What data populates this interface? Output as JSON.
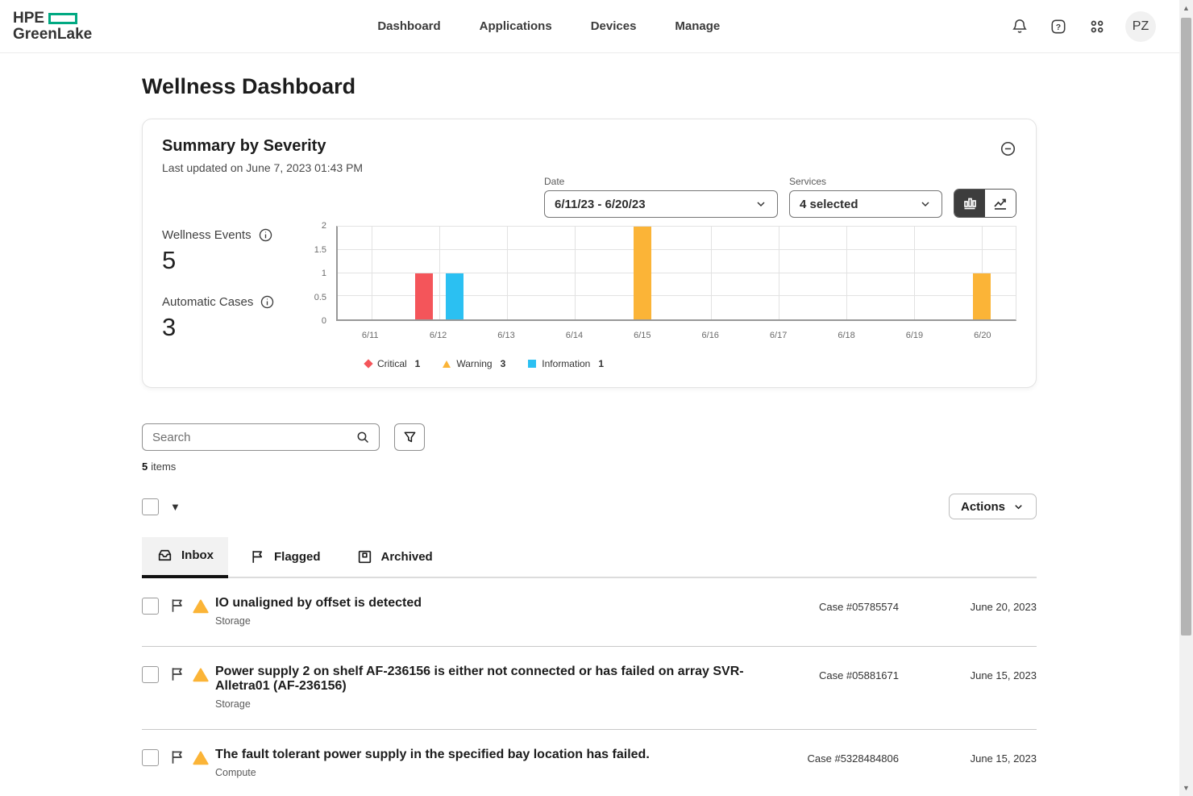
{
  "header": {
    "logo_line1": "HPE",
    "logo_line2": "GreenLake",
    "nav": [
      {
        "label": "Dashboard"
      },
      {
        "label": "Applications"
      },
      {
        "label": "Devices"
      },
      {
        "label": "Manage"
      }
    ],
    "icons": [
      "bell-icon",
      "help-icon",
      "apps-grid-icon"
    ],
    "avatar_initials": "PZ"
  },
  "page": {
    "title": "Wellness Dashboard"
  },
  "summary_card": {
    "title": "Summary by Severity",
    "subtitle": "Last updated on June 7, 2023 01:43 PM",
    "date_label": "Date",
    "date_value": "6/11/23 - 6/20/23",
    "services_label": "Services",
    "services_value": "4 selected",
    "stats": [
      {
        "label": "Wellness Events",
        "value": "5"
      },
      {
        "label": "Automatic Cases",
        "value": "3"
      }
    ]
  },
  "chart_data": {
    "type": "bar",
    "title": "Summary by Severity",
    "categories": [
      "6/11",
      "6/12",
      "6/13",
      "6/14",
      "6/15",
      "6/16",
      "6/17",
      "6/18",
      "6/19",
      "6/20"
    ],
    "series": [
      {
        "name": "Critical",
        "marker": "diamond",
        "color": "#f4555a",
        "values": [
          0,
          1,
          0,
          0,
          0,
          0,
          0,
          0,
          0,
          0
        ],
        "total": 1
      },
      {
        "name": "Warning",
        "marker": "triangle",
        "color": "#fbb437",
        "values": [
          0,
          0,
          0,
          0,
          2,
          0,
          0,
          0,
          0,
          1
        ],
        "total": 3
      },
      {
        "name": "Information",
        "marker": "square",
        "color": "#2bc0f2",
        "values": [
          0,
          1,
          0,
          0,
          0,
          0,
          0,
          0,
          0,
          0
        ],
        "total": 1
      }
    ],
    "xlabel": "",
    "ylabel": "",
    "ylim": [
      0,
      2
    ],
    "yticks": [
      0,
      0.5,
      1,
      1.5,
      2
    ],
    "grid": true,
    "legend_position": "bottom-left"
  },
  "toolbar": {
    "search_placeholder": "Search",
    "items_count": "5",
    "items_label": "items",
    "actions_label": "Actions"
  },
  "tabs": [
    {
      "label": "Inbox",
      "icon": "inbox-icon",
      "selected": true
    },
    {
      "label": "Flagged",
      "icon": "flag-icon",
      "selected": false
    },
    {
      "label": "Archived",
      "icon": "archive-icon",
      "selected": false
    }
  ],
  "inbox": {
    "rows": [
      {
        "title": "IO unaligned by offset is detected",
        "category": "Storage",
        "case": "Case #05785574",
        "date": "June 20, 2023",
        "severity": "warning"
      },
      {
        "title": "Power supply 2 on shelf AF-236156 is either not connected or has failed on array SVR-Alletra01 (AF-236156)",
        "category": "Storage",
        "case": "Case #05881671",
        "date": "June 15, 2023",
        "severity": "warning"
      },
      {
        "title": "The fault tolerant power supply in the specified bay location has failed.",
        "category": "Compute",
        "case": "Case #5328484806",
        "date": "June 15, 2023",
        "severity": "warning"
      }
    ]
  },
  "colors": {
    "brand": "#01a982",
    "critical": "#f4555a",
    "warning": "#fbb437",
    "information": "#2bc0f2"
  }
}
